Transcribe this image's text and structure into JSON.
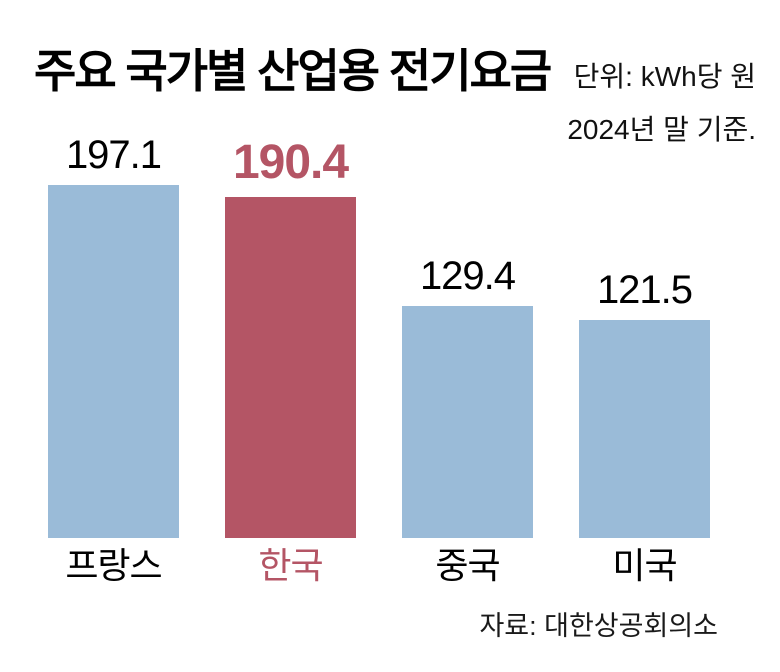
{
  "header": {
    "title": "주요 국가별 산업용 전기요금",
    "unit": "단위: kWh당 원",
    "as_of": "2024년 말 기준."
  },
  "footer": {
    "source": "자료: 대한상공회의소"
  },
  "colors": {
    "background": "#ffffff",
    "bar_default": "#9abbd8",
    "bar_highlight": "#b45565",
    "value_label_default": "#000000",
    "value_label_highlight": "#b45565",
    "category_label_default": "#000000",
    "category_label_highlight": "#b45565",
    "title_color": "#000000"
  },
  "chart_data": {
    "type": "bar",
    "title": "주요 국가별 산업용 전기요금",
    "unit_label": "단위: kWh당 원",
    "as_of_label": "2024년 말 기준.",
    "categories": [
      "프랑스",
      "한국",
      "중국",
      "미국"
    ],
    "values": [
      197.1,
      190.4,
      129.4,
      121.5
    ],
    "value_labels": [
      "197.1",
      "190.4",
      "129.4",
      "121.5"
    ],
    "highlight_index": 1,
    "highlight_category": "한국",
    "xlabel": "",
    "ylabel": "kWh당 원",
    "ylim": [
      0,
      210
    ],
    "grid": false,
    "legend": false,
    "axis_lines": false,
    "source": "대한상공회의소"
  }
}
